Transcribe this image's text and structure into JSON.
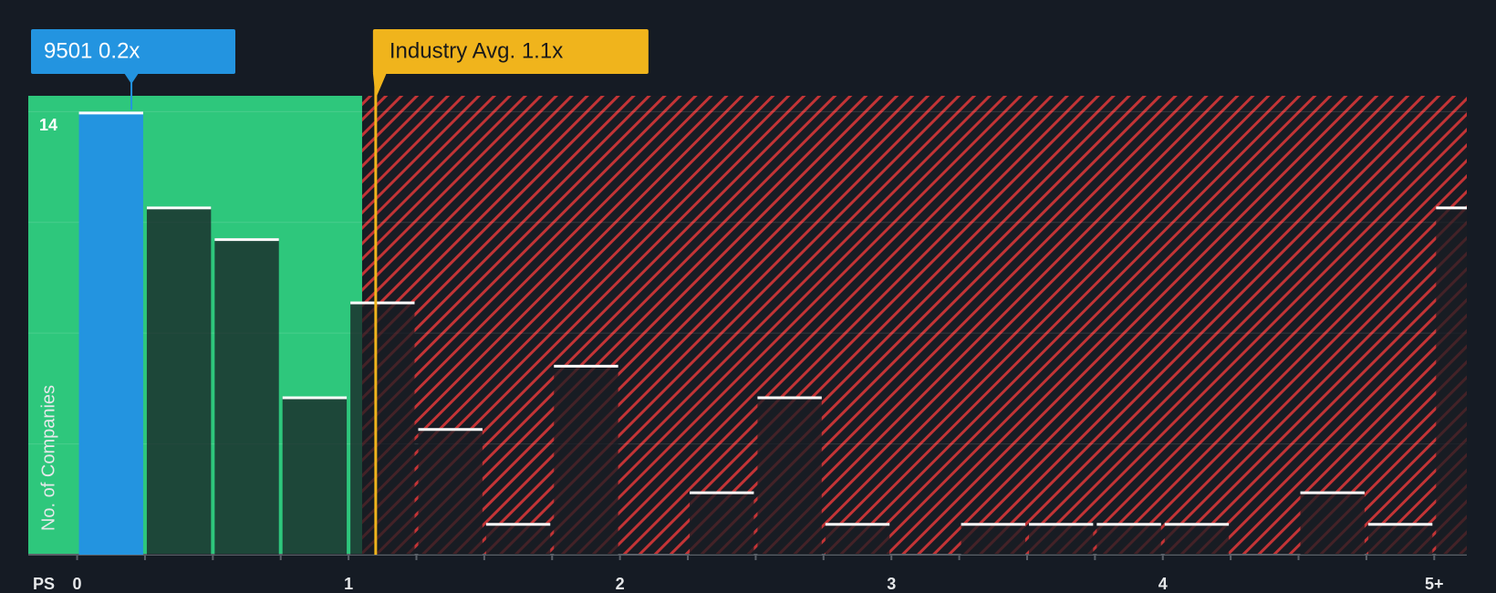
{
  "chart_data": {
    "type": "histogram",
    "x_label": "PS",
    "y_label": "No. of Companies",
    "bins": [
      0,
      0.25,
      0.5,
      0.75,
      1,
      1.25,
      1.5,
      1.75,
      2,
      2.25,
      2.5,
      2.75,
      3,
      3.25,
      3.5,
      3.75,
      4,
      4.25,
      4.5,
      4.75,
      5,
      5.25
    ],
    "values": [
      14,
      11,
      10,
      5,
      8,
      4,
      1,
      6,
      0,
      2,
      5,
      1,
      0,
      1,
      1,
      1,
      1,
      0,
      2,
      1,
      11
    ],
    "color": "rgba(24,28,35,0.75)",
    "highlight_color": "#2394e0",
    "xlim": [
      -0.18,
      5.12
    ],
    "ylim": [
      0,
      14.5
    ],
    "xticks": [
      0,
      1,
      2,
      3,
      4,
      {
        "value": 5,
        "label": "5+"
      }
    ],
    "yticks": [
      14
    ],
    "ygrid": [
      3.5,
      7,
      10.5,
      14
    ],
    "company_label": "9501 0.2x",
    "company_value": 0.2,
    "industry_label": "Industry Avg. 1.1x",
    "industry_value": 1.1,
    "green_zone_end": 1.05,
    "green_color": "#2ec77c",
    "red_color": "#d83a3a",
    "industry_color": "#f0b41c"
  }
}
